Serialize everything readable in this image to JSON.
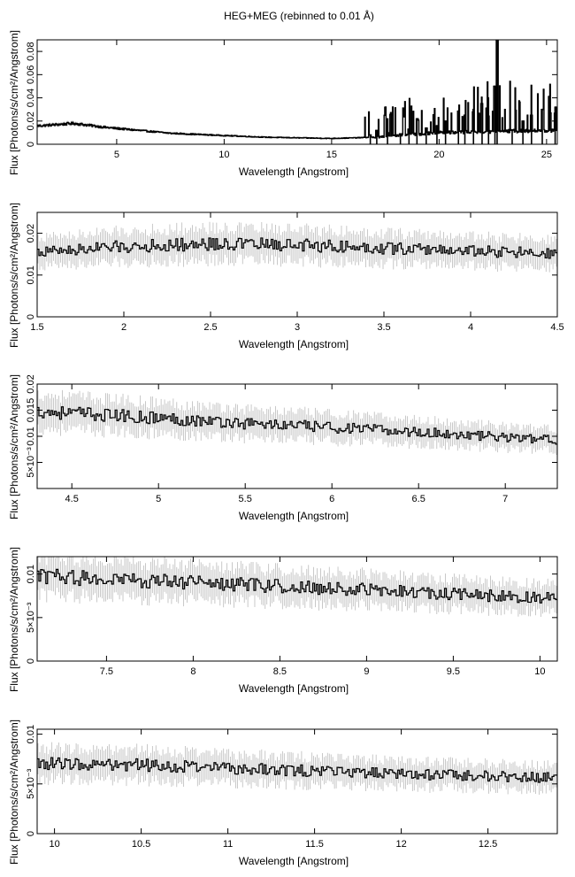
{
  "figure_title": "HEG+MEG (rebinned to 0.01 Å)",
  "colors": {
    "axis": "#000000",
    "data": "#000000",
    "error": "#bbbbbb",
    "background": "#ffffff"
  },
  "chart_data": [
    {
      "type": "line",
      "style": "step-histogram-with-error-bars",
      "xlabel": "Wavelength [Angstrom]",
      "ylabel": "Flux [Photons/s/cm²/Angstrom]",
      "xlim": [
        1.3,
        25.5
      ],
      "ylim": [
        0,
        0.09
      ],
      "xticks": [
        5,
        10,
        15,
        20,
        25
      ],
      "xtick_labels": [
        "5",
        "10",
        "15",
        "20",
        "25"
      ],
      "yticks": [
        0,
        0.02,
        0.04,
        0.06,
        0.08
      ],
      "ytick_labels": [
        "0",
        "0.02",
        "0.04",
        "0.06",
        "0.08"
      ],
      "profile": [
        [
          1.5,
          0.016
        ],
        [
          3,
          0.018
        ],
        [
          4.5,
          0.0145
        ],
        [
          6,
          0.012
        ],
        [
          7.5,
          0.0095
        ],
        [
          10,
          0.0075
        ],
        [
          12,
          0.006
        ],
        [
          15,
          0.005
        ],
        [
          17,
          0.006
        ],
        [
          20,
          0.01
        ],
        [
          25.5,
          0.012
        ]
      ],
      "peaks": [
        [
          16.8,
          0.008
        ],
        [
          17.1,
          0.012
        ],
        [
          17.6,
          0.01
        ],
        [
          18.2,
          0.009
        ],
        [
          18.6,
          0.013
        ],
        [
          18.97,
          0.022
        ],
        [
          19.4,
          0.014
        ],
        [
          19.9,
          0.016
        ],
        [
          20.3,
          0.02
        ],
        [
          20.9,
          0.018
        ],
        [
          21.2,
          0.025
        ],
        [
          21.6,
          0.03
        ],
        [
          22.0,
          0.035
        ],
        [
          22.3,
          0.04
        ],
        [
          22.7,
          0.09
        ],
        [
          22.6,
          0.05
        ],
        [
          23.4,
          0.012
        ],
        [
          23.9,
          0.02
        ],
        [
          24.3,
          0.025
        ],
        [
          24.8,
          0.03
        ],
        [
          25.4,
          0.032
        ]
      ]
    },
    {
      "type": "line",
      "style": "step-histogram-with-error-bars",
      "xlabel": "Wavelength [Angstrom]",
      "ylabel": "Flux [Photons/s/cm²/Angstrom]",
      "xlim": [
        1.5,
        4.5
      ],
      "ylim": [
        0,
        0.025
      ],
      "xticks": [
        1.5,
        2,
        2.5,
        3,
        3.5,
        4,
        4.5
      ],
      "xtick_labels": [
        "1.5",
        "2",
        "2.5",
        "3",
        "3.5",
        "4",
        "4.5"
      ],
      "yticks": [
        0,
        0.01,
        0.02
      ],
      "ytick_labels": [
        "0",
        "0.01",
        "0.02"
      ],
      "profile": [
        [
          1.5,
          0.0155
        ],
        [
          2.0,
          0.0168
        ],
        [
          2.5,
          0.0175
        ],
        [
          3.0,
          0.0172
        ],
        [
          3.5,
          0.0165
        ],
        [
          4.0,
          0.0158
        ],
        [
          4.5,
          0.015
        ]
      ],
      "peaks": []
    },
    {
      "type": "line",
      "style": "step-histogram-with-error-bars",
      "xlabel": "Wavelength [Angstrom]",
      "ylabel": "Flux [Photons/s/cm²/Angstrom]",
      "xlim": [
        4.3,
        7.3
      ],
      "ylim": [
        0,
        0.02
      ],
      "xticks": [
        4.5,
        5,
        5.5,
        6,
        6.5,
        7
      ],
      "xtick_labels": [
        "4.5",
        "5",
        "5.5",
        "6",
        "6.5",
        "7"
      ],
      "yticks": [
        0.005,
        0.01,
        0.015,
        0.02
      ],
      "ytick_labels": [
        "5×10⁻³",
        "0.01",
        "0.015",
        "0.02"
      ],
      "profile": [
        [
          4.3,
          0.0148
        ],
        [
          5.0,
          0.0135
        ],
        [
          5.5,
          0.0125
        ],
        [
          6.0,
          0.0117
        ],
        [
          6.5,
          0.0108
        ],
        [
          7.0,
          0.0098
        ],
        [
          7.3,
          0.0093
        ]
      ],
      "peaks": []
    },
    {
      "type": "line",
      "style": "step-histogram-with-error-bars",
      "xlabel": "Wavelength [Angstrom]",
      "ylabel": "Flux [Photons/s/cm²/Angstrom]",
      "xlim": [
        7.1,
        10.1
      ],
      "ylim": [
        0,
        0.012
      ],
      "xticks": [
        7.5,
        8,
        8.5,
        9,
        9.5,
        10
      ],
      "xtick_labels": [
        "7.5",
        "8",
        "8.5",
        "9",
        "9.5",
        "10"
      ],
      "yticks": [
        0,
        0.005,
        0.01
      ],
      "ytick_labels": [
        "0",
        "5×10⁻³",
        "0.01"
      ],
      "profile": [
        [
          7.1,
          0.0098
        ],
        [
          7.5,
          0.0094
        ],
        [
          8.0,
          0.009
        ],
        [
          8.5,
          0.0086
        ],
        [
          9.0,
          0.0082
        ],
        [
          9.5,
          0.0077
        ],
        [
          10.1,
          0.0072
        ]
      ],
      "peaks": []
    },
    {
      "type": "line",
      "style": "step-histogram-with-error-bars",
      "xlabel": "Wavelength [Angstrom]",
      "ylabel": "Flux [Photons/s/cm²/Angstrom]",
      "xlim": [
        9.9,
        12.9
      ],
      "ylim": [
        0,
        0.0105
      ],
      "xticks": [
        10,
        10.5,
        11,
        11.5,
        12,
        12.5
      ],
      "xtick_labels": [
        "10",
        "10.5",
        "11",
        "11.5",
        "12",
        "12.5"
      ],
      "yticks": [
        0,
        0.005,
        0.01
      ],
      "ytick_labels": [
        "0",
        "5×10⁻³",
        "0.01"
      ],
      "profile": [
        [
          9.9,
          0.0071
        ],
        [
          10.5,
          0.0069
        ],
        [
          11.0,
          0.0066
        ],
        [
          11.5,
          0.0063
        ],
        [
          12.0,
          0.006
        ],
        [
          12.5,
          0.0058
        ],
        [
          12.9,
          0.0056
        ]
      ],
      "peaks": []
    }
  ]
}
